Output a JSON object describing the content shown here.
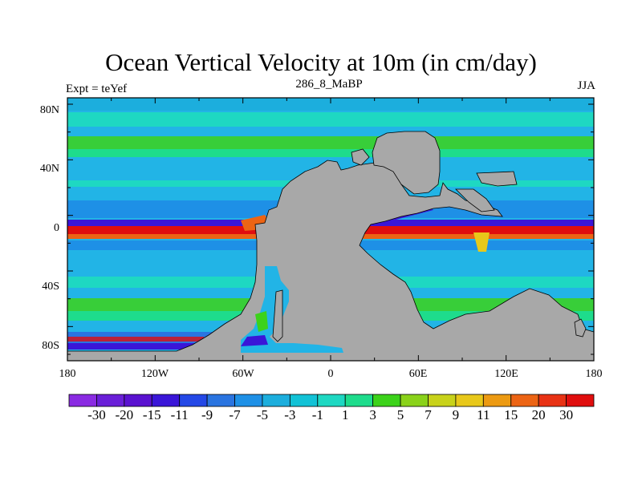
{
  "title": "Ocean Vertical Velocity at 10m (in cm/day)",
  "subtitle_left": "Expt = teYef",
  "subtitle_center": "286_8_MaBP",
  "subtitle_right": "JJA",
  "lat_labels": [
    "80N",
    "40N",
    "0",
    "40S",
    "80S"
  ],
  "lon_labels": [
    "180",
    "120W",
    "60W",
    "0",
    "60E",
    "120E",
    "180"
  ],
  "colorbar": {
    "labels": [
      "-30",
      "-20",
      "-15",
      "-11",
      "-9",
      "-7",
      "-5",
      "-3",
      "-1",
      "1",
      "3",
      "5",
      "7",
      "9",
      "11",
      "15",
      "20",
      "30"
    ],
    "colors": [
      "#8a2be2",
      "#6a1fd8",
      "#5a12d0",
      "#3a16d8",
      "#2448e6",
      "#2a74e0",
      "#1e90e6",
      "#1caedd",
      "#12c2d6",
      "#1ed8c2",
      "#1edc8c",
      "#3cd21a",
      "#8ad21a",
      "#c8d21a",
      "#e8c81a",
      "#ec9a12",
      "#ec6414",
      "#e83214",
      "#e00e0e"
    ]
  },
  "colors": {
    "land": "#a8a8a8",
    "ocean_base": "#22b4e6",
    "equator_red": "#e0140e",
    "equator_blue": "#3a24d8",
    "zonal_green": "#2ed8b0"
  }
}
